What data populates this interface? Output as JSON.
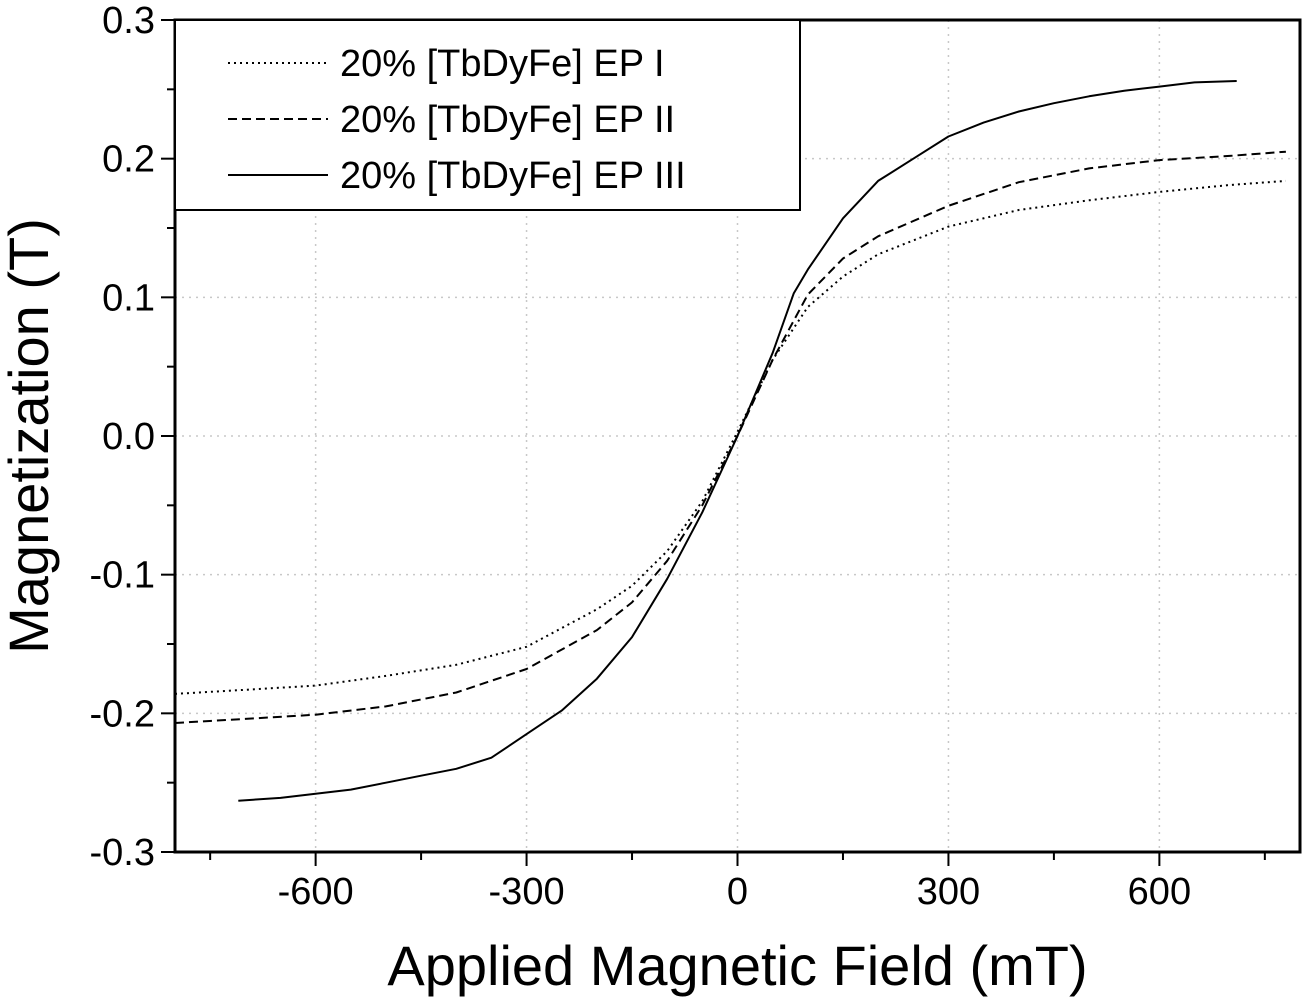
{
  "chart_data": {
    "type": "line",
    "title": "",
    "xlabel": "Applied Magnetic Field (mT)",
    "ylabel": "Magnetization (T)",
    "xlim": [
      -800,
      800
    ],
    "ylim": [
      -0.3,
      0.3
    ],
    "x_ticks": [
      -600,
      -300,
      0,
      300,
      600
    ],
    "x_tick_labels": [
      "-600",
      "-300",
      "0",
      "300",
      "600"
    ],
    "y_ticks": [
      -0.3,
      -0.2,
      -0.1,
      0.0,
      0.1,
      0.2,
      0.3
    ],
    "y_tick_labels": [
      "-0.3",
      "-0.2",
      "-0.1",
      "0.0",
      "0.1",
      "0.2",
      "0.3"
    ],
    "grid": true,
    "legend_position": "top-left",
    "line_color": "#000000",
    "series": [
      {
        "name": "20% [TbDyFe] EP I",
        "style": "dotted",
        "x": [
          -800,
          -700,
          -600,
          -500,
          -400,
          -300,
          -200,
          -150,
          -100,
          -50,
          0,
          50,
          100,
          150,
          200,
          300,
          400,
          500,
          600,
          700,
          780
        ],
        "y": [
          -0.186,
          -0.183,
          -0.18,
          -0.173,
          -0.165,
          -0.152,
          -0.125,
          -0.108,
          -0.083,
          -0.047,
          0.003,
          0.055,
          0.093,
          0.115,
          0.131,
          0.151,
          0.163,
          0.17,
          0.176,
          0.181,
          0.184
        ]
      },
      {
        "name": "20% [TbDyFe] EP II",
        "style": "dashed",
        "x": [
          -800,
          -700,
          -600,
          -500,
          -400,
          -300,
          -200,
          -150,
          -100,
          -50,
          0,
          50,
          100,
          150,
          200,
          300,
          400,
          500,
          600,
          700,
          780
        ],
        "y": [
          -0.207,
          -0.204,
          -0.201,
          -0.195,
          -0.185,
          -0.168,
          -0.14,
          -0.12,
          -0.09,
          -0.05,
          0.0,
          0.055,
          0.102,
          0.128,
          0.144,
          0.166,
          0.183,
          0.193,
          0.199,
          0.202,
          0.205
        ]
      },
      {
        "name": "20% [TbDyFe] EP III",
        "style": "solid",
        "x": [
          -710,
          -650,
          -600,
          -550,
          -500,
          -450,
          -400,
          -350,
          -300,
          -250,
          -200,
          -150,
          -100,
          -50,
          0,
          50,
          80,
          100,
          150,
          200,
          250,
          300,
          350,
          400,
          450,
          500,
          550,
          600,
          650,
          710
        ],
        "y": [
          -0.263,
          -0.261,
          -0.258,
          -0.255,
          -0.25,
          -0.245,
          -0.24,
          -0.232,
          -0.215,
          -0.198,
          -0.175,
          -0.145,
          -0.103,
          -0.055,
          0.0,
          0.06,
          0.103,
          0.12,
          0.157,
          0.184,
          0.2,
          0.216,
          0.226,
          0.234,
          0.24,
          0.245,
          0.249,
          0.252,
          0.255,
          0.256
        ]
      }
    ]
  }
}
